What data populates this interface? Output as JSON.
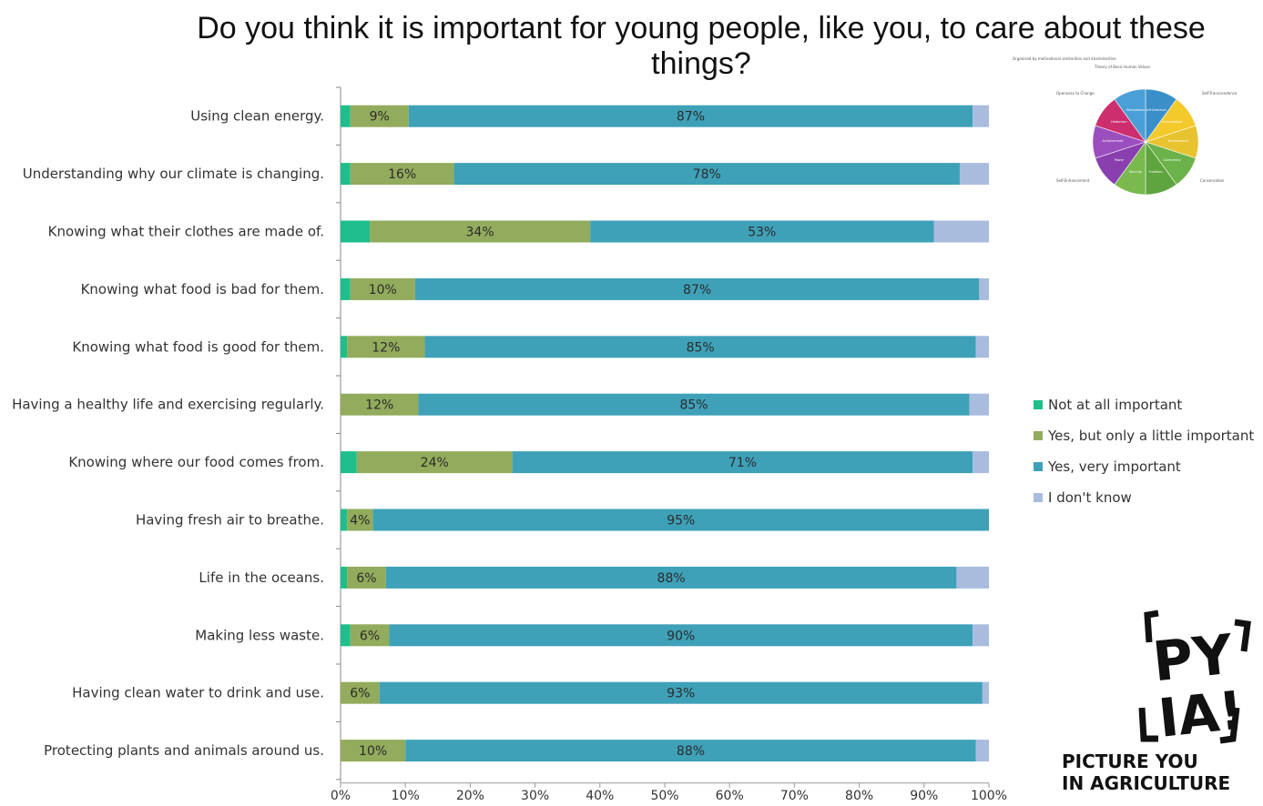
{
  "title": "Do you think it is important for young people, like you, to care about these things?",
  "chart_data": {
    "type": "bar",
    "orientation": "horizontal",
    "stacked": true,
    "percent_stacked": true,
    "categories": [
      "Using clean energy.",
      "Understanding why our climate is changing.",
      "Knowing what their clothes are made of.",
      "Knowing what food is bad for them.",
      "Knowing what food is good for them.",
      "Having a healthy life and exercising regularly.",
      "Knowing where our food comes from.",
      "Having fresh air to breathe.",
      "Life in the oceans.",
      "Making less waste.",
      "Having clean water to drink and use.",
      "Protecting plants and animals around us."
    ],
    "series": [
      {
        "name": "Not at all important",
        "color": "#1fbe8c",
        "values": [
          1.5,
          1.5,
          4.5,
          1.5,
          1,
          0,
          2.5,
          1,
          1,
          1.5,
          0,
          0
        ]
      },
      {
        "name": "Yes, but only a little important",
        "color": "#93ab5c",
        "values": [
          9,
          16,
          34,
          10,
          12,
          12,
          24,
          4,
          6,
          6,
          6,
          10
        ]
      },
      {
        "name": "Yes, very important",
        "color": "#3ea1b8",
        "values": [
          87,
          78,
          53,
          87,
          85,
          85,
          71,
          95,
          88,
          90,
          93,
          88
        ]
      },
      {
        "name": "I don't know",
        "color": "#a9bcde",
        "values": [
          2.5,
          4.5,
          8.5,
          1.5,
          2,
          3,
          2.5,
          0,
          5,
          2.5,
          1,
          2
        ]
      }
    ],
    "data_labels": [
      [
        "9%",
        "87%"
      ],
      [
        "16%",
        "78%"
      ],
      [
        "34%",
        "53%"
      ],
      [
        "10%",
        "87%"
      ],
      [
        "12%",
        "85%"
      ],
      [
        "12%",
        "85%"
      ],
      [
        "24%",
        "71%"
      ],
      [
        "4%",
        "95%"
      ],
      [
        "6%",
        "88%"
      ],
      [
        "6%",
        "90%"
      ],
      [
        "6%",
        "93%"
      ],
      [
        "10%",
        "88%"
      ]
    ],
    "xlim": [
      0,
      100
    ],
    "xticks": [
      "0%",
      "10%",
      "20%",
      "30%",
      "40%",
      "50%",
      "60%",
      "70%",
      "80%",
      "90%",
      "100%"
    ],
    "grid": false,
    "legend_position": "right"
  },
  "inset": {
    "title": "Theory of Basic Human Values",
    "caption": "Organised by motivational similarities and dissimilarities",
    "quadrants": [
      "Openness to Change",
      "Self-Transcendence",
      "Conservation",
      "Self-Enhancement"
    ],
    "slices": [
      {
        "name": "Self-Direction",
        "color": "#3a8fc9"
      },
      {
        "name": "Universalism",
        "color": "#f4c92c"
      },
      {
        "name": "Benevolence",
        "color": "#e8c330"
      },
      {
        "name": "Conformity",
        "color": "#6cb24a"
      },
      {
        "name": "Tradition",
        "color": "#5ea43f"
      },
      {
        "name": "Security",
        "color": "#79b94e"
      },
      {
        "name": "Power",
        "color": "#8a3fae"
      },
      {
        "name": "Achievement",
        "color": "#9b4fbf"
      },
      {
        "name": "Hedonism",
        "color": "#cc2e6e"
      },
      {
        "name": "Stimulation",
        "color": "#4aa0d6"
      }
    ]
  },
  "logo": {
    "mark_top": "PY",
    "mark_bottom": "IA!",
    "line1": "PICTURE YOU",
    "line2": "IN AGRICULTURE"
  }
}
